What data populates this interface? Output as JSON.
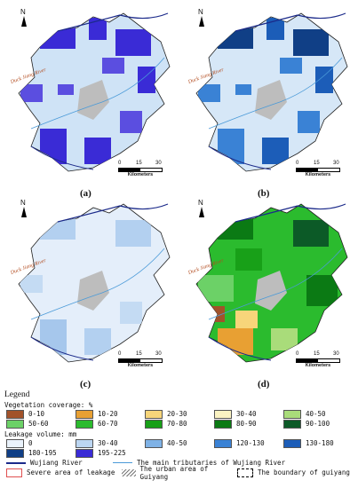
{
  "map": {
    "north": "N",
    "river_label": "Duck Jiang River",
    "scale_ticks": [
      "0",
      "15",
      "30"
    ],
    "scale_unit": "Kilometers",
    "captions": [
      "(a)",
      "(b)",
      "(c)",
      "(d)"
    ]
  },
  "legend": {
    "title": "Legend",
    "vegetation_title": "Vegetation coverage: %",
    "vegetation": [
      {
        "label": "0-10",
        "color": "#a2522a"
      },
      {
        "label": "10-20",
        "color": "#e8a033"
      },
      {
        "label": "20-30",
        "color": "#f7d57a"
      },
      {
        "label": "30-40",
        "color": "#fbf3c2"
      },
      {
        "label": "40-50",
        "color": "#a9dc7a"
      },
      {
        "label": "50-60",
        "color": "#6cd167"
      },
      {
        "label": "60-70",
        "color": "#2bbb2e"
      },
      {
        "label": "70-80",
        "color": "#18a018"
      },
      {
        "label": "80-90",
        "color": "#0b7a14"
      },
      {
        "label": "90-100",
        "color": "#0c5a27"
      }
    ],
    "leakage_title": "Leakage volume: mm",
    "leakage": [
      {
        "label": "0",
        "color": "#eaf2fb"
      },
      {
        "label": "30-40",
        "color": "#bcd6f2"
      },
      {
        "label": "40-50",
        "color": "#7fb2e6"
      },
      {
        "label": "120-130",
        "color": "#3a82d5"
      },
      {
        "label": "130-180",
        "color": "#1c5db8"
      },
      {
        "label": "180-195",
        "color": "#103f86"
      },
      {
        "label": "195-225",
        "color": "#3a2bd6"
      }
    ],
    "lines": [
      {
        "label": "Wujiang River",
        "color": "#1b2a8a"
      },
      {
        "label": "The main tributaries of Wujiang River",
        "color": "#4a9ad8"
      }
    ],
    "areas": [
      {
        "label": "Severe area of leakage",
        "color": "#e05050"
      },
      {
        "label": "The urban area of Guiyang",
        "color": "#777777"
      },
      {
        "label": "The boundary of guiyang",
        "color": "#000000"
      }
    ]
  }
}
